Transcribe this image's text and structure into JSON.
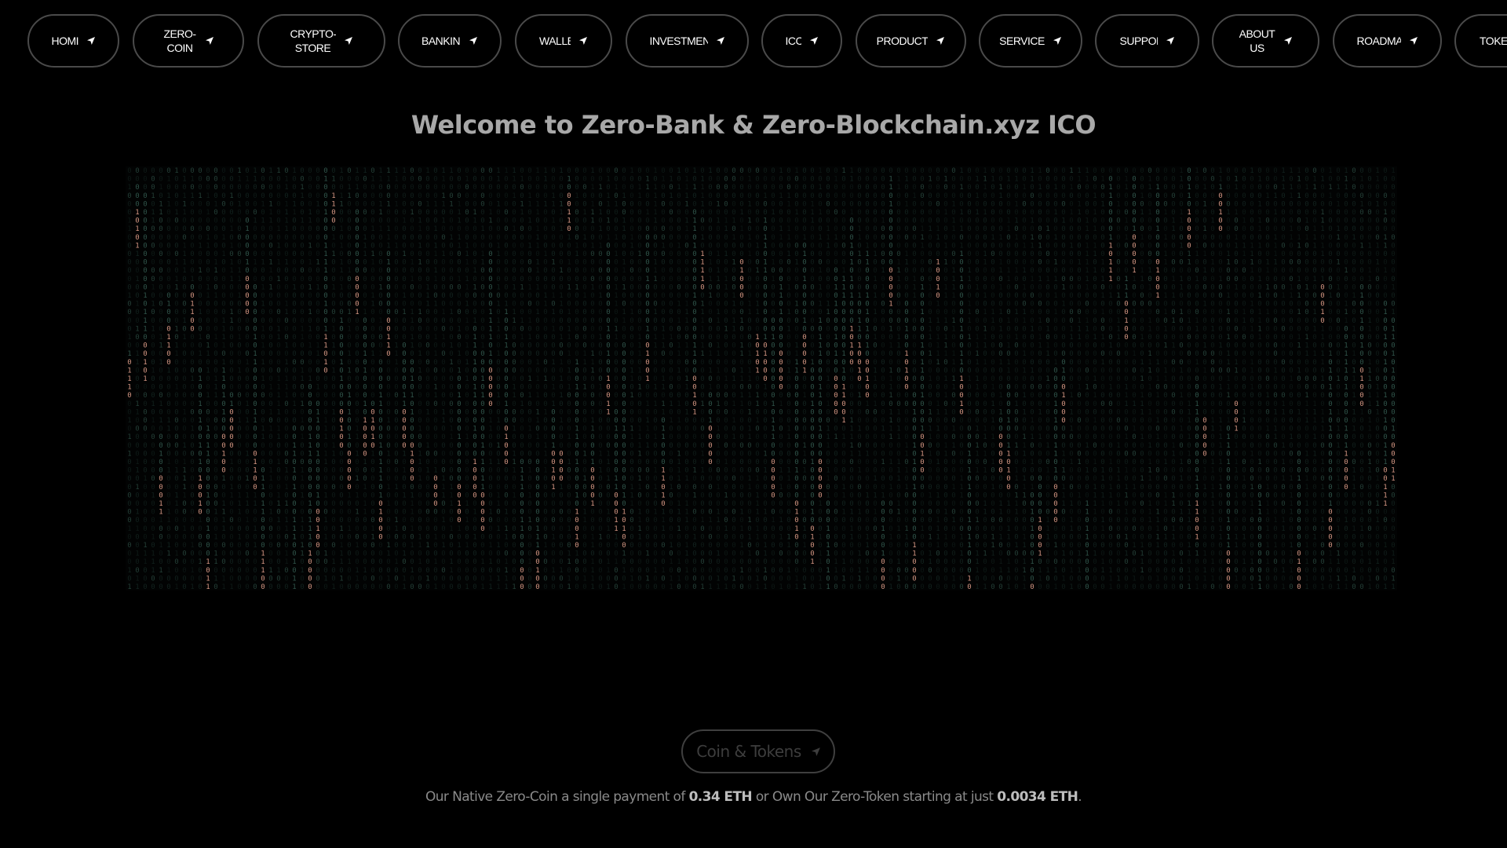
{
  "nav": {
    "items": [
      {
        "label": "HOMI"
      },
      {
        "label": "ZERO-COIN"
      },
      {
        "label": "CRYPTO-STORE"
      },
      {
        "label": "BANKIN("
      },
      {
        "label": "WALLE"
      },
      {
        "label": "INVESTMENT"
      },
      {
        "label": "ICC"
      },
      {
        "label": "PRODUCT"
      },
      {
        "label": "SERVICE"
      },
      {
        "label": "SUPPOR"
      },
      {
        "label": "ABOUT US"
      },
      {
        "label": "ROADMA"
      },
      {
        "label": "TOKEN"
      }
    ],
    "arrow_icon": "send-arrow-icon"
  },
  "hero": {
    "title": "Welcome to Zero-Bank & Zero-Blockchain.xyz ICO",
    "rain_digits": [
      "0",
      "1"
    ],
    "rain_colors": {
      "dim": "#1f3a33",
      "mid": "#3f6f61",
      "head": "#e8a48f"
    }
  },
  "cta": {
    "label": "Coin & Tokens",
    "icon": "send-arrow-icon"
  },
  "tagline": {
    "part1": "Our Native Zero-Coin a single payment of ",
    "coin_price": "0.34 ETH",
    "part2": " or Own Our Zero-Token starting at just ",
    "token_price": "0.0034 ETH",
    "part3": "."
  },
  "colors": {
    "background": "#000000",
    "border": "#4a4a4a",
    "title": "#a8a8a8"
  }
}
